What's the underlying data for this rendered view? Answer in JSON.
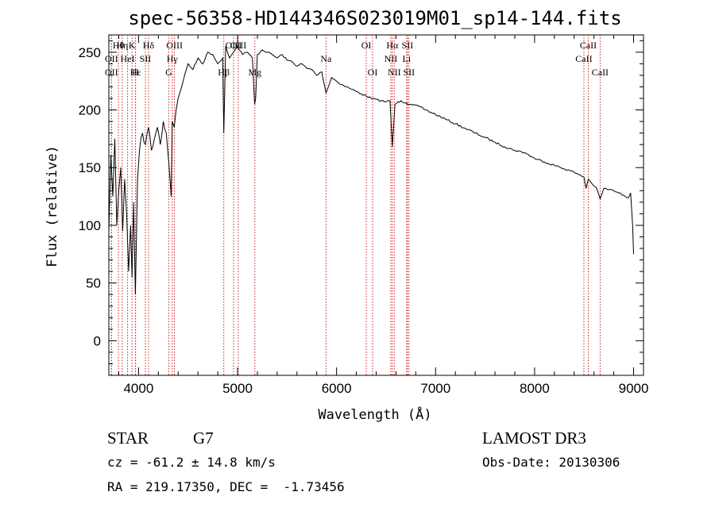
{
  "chart_data": {
    "type": "line",
    "title": "spec-56358-HD144346S023019M01_sp14-144.fits",
    "xlabel": "Wavelength (Å)",
    "ylabel": "Flux (relative)",
    "xlim": [
      3700,
      9100
    ],
    "ylim": [
      -30,
      265
    ],
    "xticks": [
      4000,
      5000,
      6000,
      7000,
      8000,
      9000
    ],
    "yticks": [
      0,
      50,
      100,
      150,
      200,
      250
    ],
    "grid": false,
    "series": [
      {
        "x": [
          3700,
          3720,
          3740,
          3760,
          3780,
          3800,
          3820,
          3840,
          3860,
          3880,
          3900,
          3920,
          3934,
          3950,
          3968,
          3990,
          4010,
          4040,
          4070,
          4101,
          4130,
          4160,
          4190,
          4220,
          4250,
          4280,
          4305,
          4330,
          4340,
          4360,
          4380,
          4400,
          4450,
          4500,
          4550,
          4600,
          4650,
          4700,
          4750,
          4800,
          4850,
          4861,
          4880,
          4920,
          4960,
          5000,
          5050,
          5100,
          5150,
          5172,
          5183,
          5200,
          5250,
          5300,
          5350,
          5400,
          5450,
          5500,
          5550,
          5600,
          5650,
          5700,
          5750,
          5800,
          5850,
          5893,
          5950,
          6000,
          6050,
          6100,
          6150,
          6200,
          6250,
          6300,
          6350,
          6400,
          6450,
          6500,
          6540,
          6563,
          6590,
          6650,
          6700,
          6750,
          6800,
          6900,
          7000,
          7100,
          7200,
          7300,
          7400,
          7500,
          7600,
          7700,
          7800,
          7900,
          8000,
          8100,
          8200,
          8300,
          8400,
          8498,
          8520,
          8542,
          8580,
          8620,
          8662,
          8700,
          8750,
          8800,
          8850,
          8900,
          8950,
          8970,
          8990,
          9000
        ],
        "values": [
          95,
          160,
          125,
          175,
          100,
          130,
          150,
          95,
          140,
          110,
          60,
          100,
          55,
          120,
          40,
          140,
          165,
          180,
          170,
          185,
          165,
          175,
          185,
          170,
          190,
          180,
          155,
          125,
          190,
          185,
          200,
          210,
          225,
          240,
          235,
          245,
          240,
          250,
          248,
          240,
          245,
          180,
          255,
          245,
          250,
          255,
          248,
          250,
          245,
          205,
          210,
          248,
          252,
          250,
          248,
          245,
          248,
          243,
          242,
          238,
          240,
          236,
          235,
          230,
          233,
          215,
          228,
          225,
          222,
          220,
          218,
          216,
          214,
          212,
          210,
          209,
          208,
          207,
          208,
          168,
          205,
          208,
          206,
          205,
          204,
          200,
          196,
          192,
          188,
          184,
          180,
          176,
          172,
          168,
          165,
          163,
          158,
          155,
          152,
          149,
          146,
          142,
          132,
          140,
          136,
          133,
          123,
          132,
          131,
          130,
          128,
          126,
          124,
          128,
          100,
          75
        ]
      }
    ],
    "lines": [
      {
        "label": "Hθ",
        "x": 3797,
        "row": 1
      },
      {
        "label": "OII",
        "x": 3727,
        "row": 2
      },
      {
        "label": "Hη",
        "x": 3835,
        "row": 1
      },
      {
        "label": "K",
        "x": 3934,
        "row": 1
      },
      {
        "label": "HeI",
        "x": 3889,
        "row": 2
      },
      {
        "label": "SII",
        "x": 4069,
        "row": 2
      },
      {
        "label": "Hδ",
        "x": 4101,
        "row": 1
      },
      {
        "label": "OIII",
        "x": 4363,
        "row": 1
      },
      {
        "label": "Hγ",
        "x": 4340,
        "row": 2
      },
      {
        "label": "OII",
        "x": 3727,
        "row": 3
      },
      {
        "label": "Hε",
        "x": 3970,
        "row": 3
      },
      {
        "label": "H",
        "x": 3968,
        "row": 3
      },
      {
        "label": "G",
        "x": 4305,
        "row": 3
      },
      {
        "label": "Hβ",
        "x": 4861,
        "row": 3
      },
      {
        "label": "OIII",
        "x": 4959,
        "row": 1
      },
      {
        "label": "OIII",
        "x": 5007,
        "row": 1
      },
      {
        "label": "Mg",
        "x": 5175,
        "row": 3
      },
      {
        "label": "Na",
        "x": 5893,
        "row": 2
      },
      {
        "label": "OI",
        "x": 6300,
        "row": 1
      },
      {
        "label": "OI",
        "x": 6364,
        "row": 3
      },
      {
        "label": "Hα",
        "x": 6563,
        "row": 1
      },
      {
        "label": "NII",
        "x": 6548,
        "row": 2
      },
      {
        "label": "NII",
        "x": 6583,
        "row": 3
      },
      {
        "label": "SII",
        "x": 6716,
        "row": 1
      },
      {
        "label": "Li",
        "x": 6708,
        "row": 2
      },
      {
        "label": "SII",
        "x": 6731,
        "row": 3
      },
      {
        "label": "CaII",
        "x": 8542,
        "row": 1
      },
      {
        "label": "CaII",
        "x": 8498,
        "row": 2
      },
      {
        "label": "CaII",
        "x": 8662,
        "row": 3
      }
    ]
  },
  "info": {
    "object_type": "STAR",
    "subclass": "G7",
    "survey": "LAMOST DR3",
    "redshift": "cz = -61.2 ± 14.8 km/s",
    "obs_date": "Obs-Date: 20130306",
    "coords": "RA = 219.17350, DEC =  -1.73456"
  }
}
